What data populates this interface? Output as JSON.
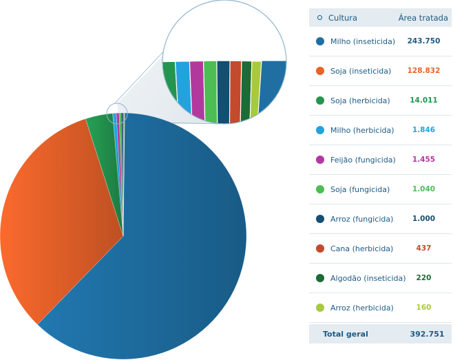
{
  "chart_data": {
    "type": "pie",
    "header": {
      "culture": "Cultura",
      "area": "Área tratada"
    },
    "slices": [
      {
        "label": "Milho (inseticida)",
        "value_text": "243.750",
        "value": 243750,
        "color": "#1f6fa3",
        "value_color": "#1b5a84"
      },
      {
        "label": "Soja (inseticida)",
        "value_text": "128.832",
        "value": 128832,
        "color": "#e8622a",
        "value_color": "#e8622a"
      },
      {
        "label": "Soja (herbicida)",
        "value_text": "14.011",
        "value": 14011,
        "color": "#23954f",
        "value_color": "#23954f"
      },
      {
        "label": "Milho (herbicida)",
        "value_text": "1.846",
        "value": 1846,
        "color": "#22a3dd",
        "value_color": "#22a3dd"
      },
      {
        "label": "Feijão (fungicida)",
        "value_text": "1.455",
        "value": 1455,
        "color": "#b1399d",
        "value_color": "#b1399d"
      },
      {
        "label": "Soja (fungicida)",
        "value_text": "1.040",
        "value": 1040,
        "color": "#4cbd52",
        "value_color": "#4cbd52"
      },
      {
        "label": "Arroz (fungicida)",
        "value_text": "1.000",
        "value": 1000,
        "color": "#134e73",
        "value_color": "#134e73"
      },
      {
        "label": "Cana (herbicida)",
        "value_text": "437",
        "value": 437,
        "color": "#c34a2c",
        "value_color": "#c34a2c"
      },
      {
        "label": "Algodão (inseticida)",
        "value_text": "220",
        "value": 220,
        "color": "#1d6b36",
        "value_color": "#1d6b36"
      },
      {
        "label": "Arroz (herbicida)",
        "value_text": "160",
        "value": 160,
        "color": "#a9c93c",
        "value_color": "#a9c93c"
      }
    ],
    "total": {
      "label": "Total geral",
      "value_text": "392.751",
      "value": 392751
    }
  }
}
